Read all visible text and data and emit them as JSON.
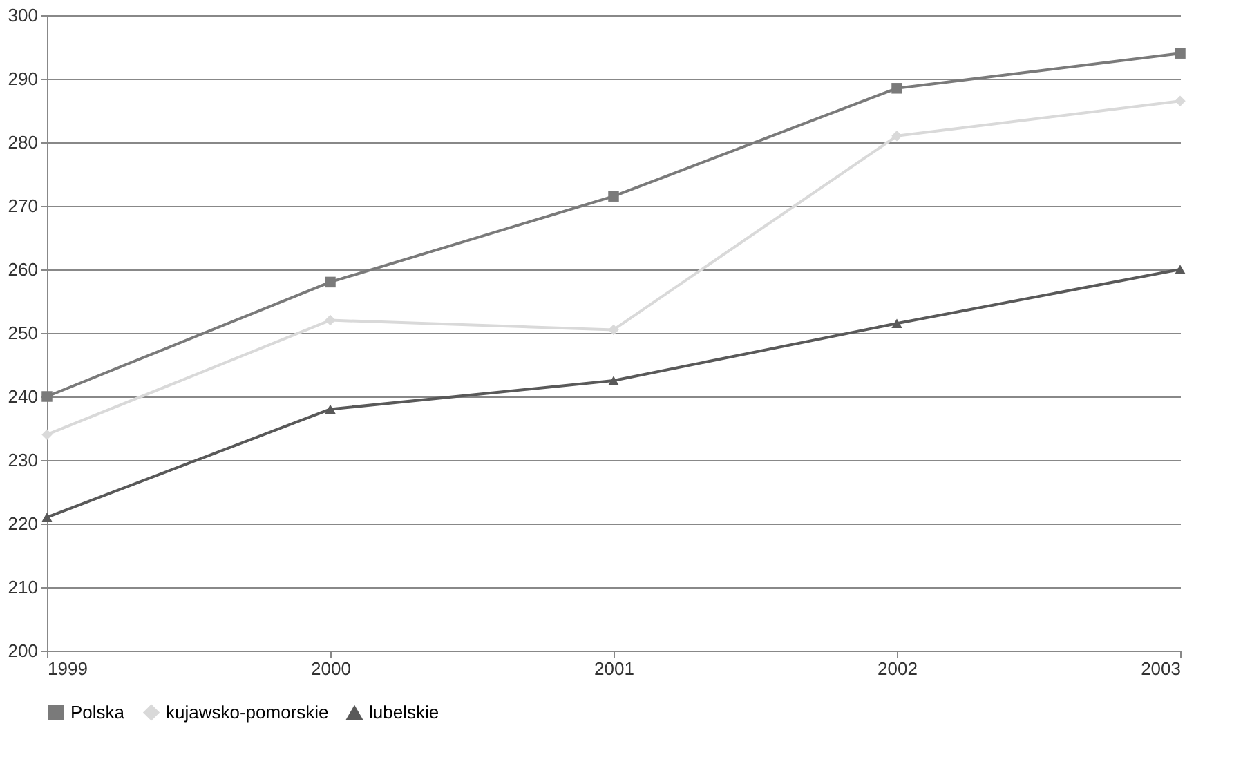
{
  "chart_data": {
    "type": "line",
    "x": [
      1999,
      2000,
      2001,
      2002,
      2003
    ],
    "xlim": [
      1999,
      2003
    ],
    "xticks": [
      1999,
      2000,
      2001,
      2002,
      2003
    ],
    "ylim": [
      200,
      300
    ],
    "yticks": [
      200,
      210,
      220,
      230,
      240,
      250,
      260,
      270,
      280,
      290,
      300
    ],
    "grid": "y",
    "legend": "bottom",
    "line_style": "solid",
    "series": [
      {
        "name": "Polska",
        "color": "#7a7a7a",
        "marker": "square",
        "values": [
          240,
          258,
          271.5,
          288.5,
          294
        ]
      },
      {
        "name": "kujawsko-pomorskie",
        "color": "#d9d9d9",
        "marker": "diamond",
        "values": [
          234,
          252,
          250.5,
          281,
          286.5
        ]
      },
      {
        "name": "lubelskie",
        "color": "#595959",
        "marker": "triangle",
        "values": [
          221,
          238,
          242.5,
          251.5,
          260
        ]
      }
    ]
  }
}
